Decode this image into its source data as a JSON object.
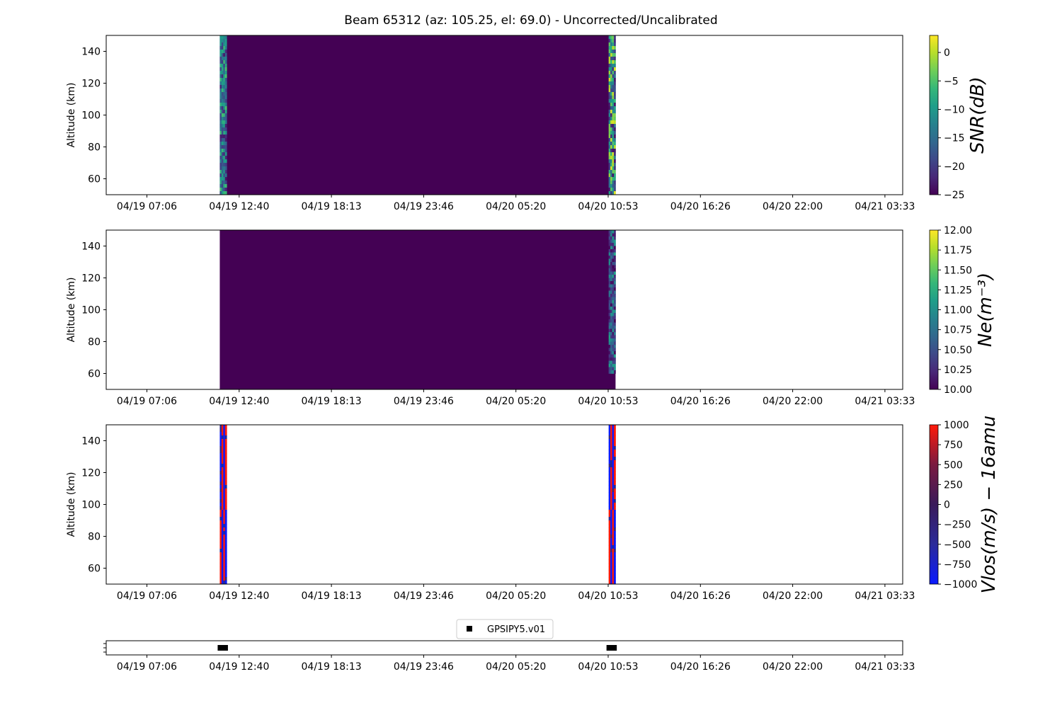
{
  "title": "Beam 65312 (az: 105.25, el: 69.0) - Uncorrected/Uncalibrated",
  "colors": {
    "viridis": [
      "#440154",
      "#482878",
      "#3e4989",
      "#31688e",
      "#26828e",
      "#1f9e89",
      "#35b779",
      "#6ece58",
      "#b5de2b",
      "#fde725"
    ],
    "bwr_dark": [
      "#0a1aff",
      "#2a2a9a",
      "#3a1a5a",
      "#7a1a40",
      "#ff1a0a"
    ],
    "background_plot": "#440154"
  },
  "time_ticks": [
    "04/19 07:06",
    "04/19 12:40",
    "04/19 18:13",
    "04/19 23:46",
    "04/20 05:20",
    "04/20 10:53",
    "04/20 16:26",
    "04/20 22:00",
    "04/21 03:33"
  ],
  "altitude_ticks": [
    60,
    80,
    100,
    120,
    140
  ],
  "chart_data": [
    {
      "type": "heatmap",
      "name": "snr",
      "ylabel": "Altitude (km)",
      "colorbar_label": "SNR(dB)",
      "ylim": [
        50,
        150
      ],
      "colorbar_ticks": [
        "0",
        "−5",
        "−10",
        "−15",
        "−20",
        "−25"
      ],
      "colorbar_range": [
        -25,
        3
      ],
      "colormap": "viridis",
      "data_windows": [
        {
          "start": "04/19 11:30",
          "end": "04/20 11:20",
          "fill_value": -25
        },
        {
          "start": "04/19 11:30",
          "end": "04/19 11:55",
          "value_range": [
            -20,
            -5
          ],
          "altitude": [
            50,
            150
          ]
        },
        {
          "start": "04/20 10:55",
          "end": "04/20 11:20",
          "value_range": [
            -15,
            2
          ],
          "altitude": [
            50,
            150
          ]
        }
      ]
    },
    {
      "type": "heatmap",
      "name": "ne",
      "ylabel": "Altitude (km)",
      "colorbar_label": "Ne(m⁻³)",
      "ylim": [
        50,
        150
      ],
      "colorbar_ticks": [
        "12.00",
        "11.75",
        "11.50",
        "11.25",
        "11.00",
        "10.75",
        "10.50",
        "10.25",
        "10.00"
      ],
      "colorbar_range": [
        10.0,
        12.0
      ],
      "colormap": "viridis",
      "data_windows": [
        {
          "start": "04/19 11:30",
          "end": "04/20 11:20",
          "fill_value": 10.0
        },
        {
          "start": "04/20 10:55",
          "end": "04/20 11:20",
          "value_range": [
            10.0,
            11.2
          ],
          "altitude": [
            60,
            150
          ]
        }
      ]
    },
    {
      "type": "heatmap",
      "name": "vlos",
      "ylabel": "Altitude (km)",
      "colorbar_label": "Vlos(m/s) − 16amu",
      "ylim": [
        50,
        150
      ],
      "colorbar_ticks": [
        "1000",
        "750",
        "500",
        "250",
        "0",
        "−250",
        "−500",
        "−750",
        "−1000"
      ],
      "colorbar_range": [
        -1000,
        1000
      ],
      "colormap": "bwr_dark",
      "data_windows": [
        {
          "start": "04/19 11:30",
          "end": "04/19 11:55",
          "value_range": [
            -1000,
            1000
          ],
          "altitude": [
            50,
            150
          ]
        },
        {
          "start": "04/20 10:55",
          "end": "04/20 11:20",
          "value_range": [
            -1000,
            1000
          ],
          "altitude": [
            50,
            150
          ]
        }
      ]
    },
    {
      "type": "scatter",
      "name": "availability",
      "series": [
        {
          "name": "GPSIPY5.v01",
          "marker": "square",
          "x": [
            "04/19 11:30",
            "04/19 11:55",
            "04/20 10:55",
            "04/20 11:20"
          ]
        }
      ]
    }
  ]
}
